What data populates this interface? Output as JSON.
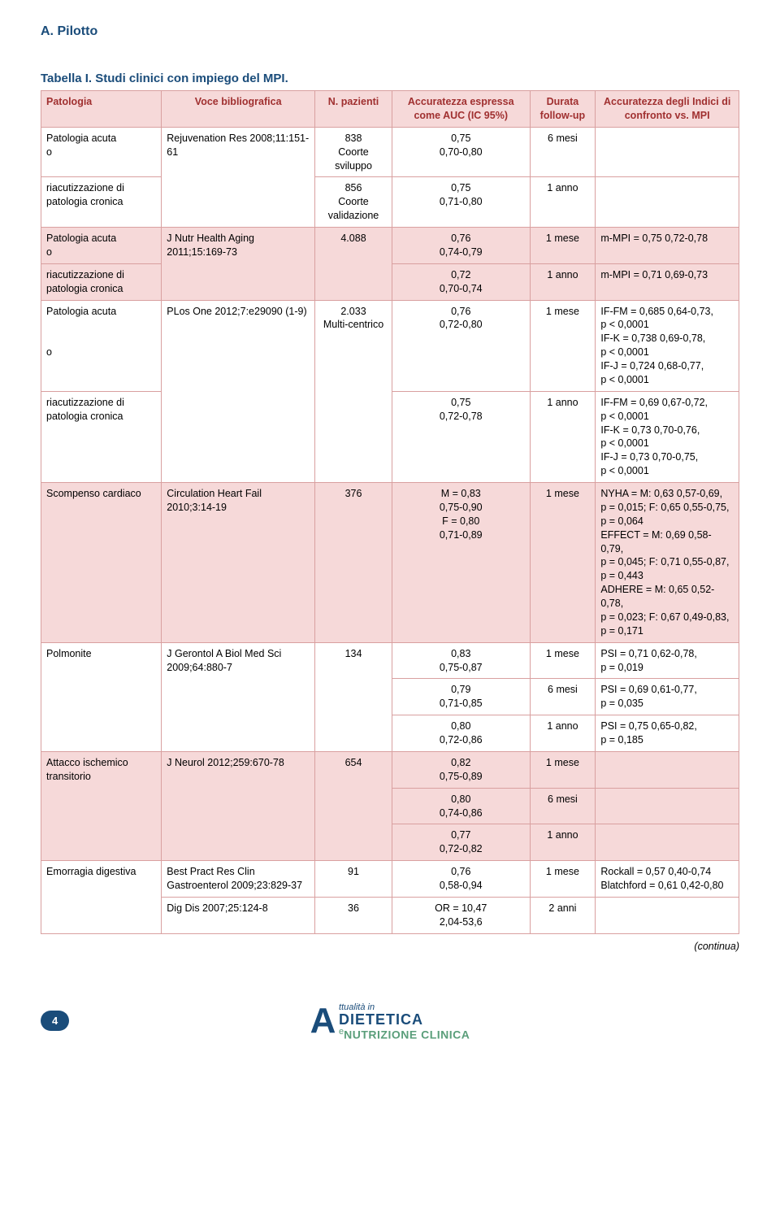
{
  "author": "A. Pilotto",
  "table_title": "Tabella I. Studi clinici con impiego del MPI.",
  "headers": {
    "patologia": "Patologia",
    "voce": "Voce bibliografica",
    "npazienti": "N. pazienti",
    "accuratezza_auc": "Accuratezza espressa come AUC (IC 95%)",
    "durata": "Durata follow-up",
    "accuratezza_mpi": "Accuratezza degli Indici di confronto vs. MPI"
  },
  "rows": [
    {
      "alt": false,
      "patologia": "Patologia acuta\no",
      "voce": "Rejuvenation Res 2008;11:151-61",
      "voce_rowspan": 2,
      "npazienti": "838\nCoorte sviluppo",
      "auc": "0,75\n0,70-0,80",
      "durata": "6 mesi",
      "mpi": ""
    },
    {
      "alt": false,
      "patologia": "riacutizzazione di patologia cronica",
      "npazienti": "856\nCoorte validazione",
      "auc": "0,75\n0,71-0,80",
      "durata": "1 anno",
      "mpi": ""
    },
    {
      "alt": true,
      "patologia": "Patologia acuta\no",
      "voce": "J Nutr Health Aging 2011;15:169-73",
      "voce_rowspan": 2,
      "npazienti": "4.088",
      "npazienti_rowspan": 2,
      "auc": "0,76\n0,74-0,79",
      "durata": "1 mese",
      "mpi": "m-MPI = 0,75   0,72-0,78"
    },
    {
      "alt": true,
      "patologia": "riacutizzazione di patologia cronica",
      "auc": "0,72\n0,70-0,74",
      "durata": "1 anno",
      "mpi": "m-MPI = 0,71   0,69-0,73"
    },
    {
      "alt": false,
      "patologia": "Patologia acuta\n\n\no",
      "voce": "PLos One 2012;7:e29090 (1-9)",
      "voce_rowspan": 2,
      "npazienti": "2.033\nMulti-centrico",
      "npazienti_rowspan": 2,
      "auc": "0,76\n0,72-0,80",
      "durata": "1 mese",
      "mpi": "IF-FM = 0,685   0,64-0,73,\np < 0,0001\nIF-K = 0,738   0,69-0,78,\np < 0,0001\nIF-J = 0,724   0,68-0,77,\np < 0,0001"
    },
    {
      "alt": false,
      "patologia": "riacutizzazione di patologia cronica",
      "auc": "0,75\n0,72-0,78",
      "durata": "1 anno",
      "mpi": "IF-FM = 0,69   0,67-0,72,\np < 0,0001\nIF-K = 0,73   0,70-0,76,\np < 0,0001\nIF-J = 0,73   0,70-0,75,\np < 0,0001"
    },
    {
      "alt": true,
      "patologia": "Scompenso cardiaco",
      "voce": "Circulation Heart Fail 2010;3:14-19",
      "npazienti": "376",
      "auc": "M = 0,83\n0,75-0,90\nF = 0,80\n0,71-0,89",
      "durata": "1 mese",
      "mpi": "NYHA = M: 0,63   0,57-0,69,\np = 0,015; F: 0,65   0,55-0,75,\np = 0,064\nEFFECT = M: 0,69   0,58-0,79,\np = 0,045; F: 0,71   0,55-0,87,\np = 0,443\nADHERE = M: 0,65   0,52-0,78,\np = 0,023; F: 0,67   0,49-0,83,\np = 0,171"
    },
    {
      "alt": false,
      "patologia": "Polmonite",
      "patologia_rowspan": 3,
      "voce": "J Gerontol A Biol Med Sci 2009;64:880-7",
      "voce_rowspan": 3,
      "npazienti": "134",
      "npazienti_rowspan": 3,
      "auc": "0,83\n0,75-0,87",
      "durata": "1 mese",
      "mpi": "PSI = 0,71   0,62-0,78,\np = 0,019"
    },
    {
      "alt": false,
      "auc": "0,79\n0,71-0,85",
      "durata": "6 mesi",
      "mpi": "PSI = 0,69   0,61-0,77,\np = 0,035"
    },
    {
      "alt": false,
      "auc": "0,80\n0,72-0,86",
      "durata": "1 anno",
      "mpi": "PSI = 0,75   0,65-0,82,\np = 0,185"
    },
    {
      "alt": true,
      "patologia": "Attacco ischemico transitorio",
      "patologia_rowspan": 3,
      "voce": "J Neurol 2012;259:670-78",
      "voce_rowspan": 3,
      "npazienti": "654",
      "npazienti_rowspan": 3,
      "auc": "0,82\n0,75-0,89",
      "durata": "1 mese",
      "mpi": ""
    },
    {
      "alt": true,
      "auc": "0,80\n0,74-0,86",
      "durata": "6 mesi",
      "mpi": ""
    },
    {
      "alt": true,
      "auc": "0,77\n0,72-0,82",
      "durata": "1 anno",
      "mpi": ""
    },
    {
      "alt": false,
      "patologia": "Emorragia digestiva",
      "patologia_rowspan": 2,
      "voce": "Best Pract Res Clin Gastroenterol 2009;23:829-37",
      "npazienti": "91",
      "auc": "0,76\n0,58-0,94",
      "durata": "1 mese",
      "mpi": "Rockall = 0,57   0,40-0,74\nBlatchford = 0,61   0,42-0,80"
    },
    {
      "alt": false,
      "voce": "Dig Dis 2007;25:124-8",
      "npazienti": "36",
      "auc": "OR = 10,47\n2,04-53,6",
      "durata": "2 anni",
      "mpi": ""
    }
  ],
  "continua": "(continua)",
  "page_number": "4",
  "brand_line1": "ttualità in",
  "brand_line2": "DIETETICA",
  "brand_line3": "NUTRIZIONE CLINICA"
}
